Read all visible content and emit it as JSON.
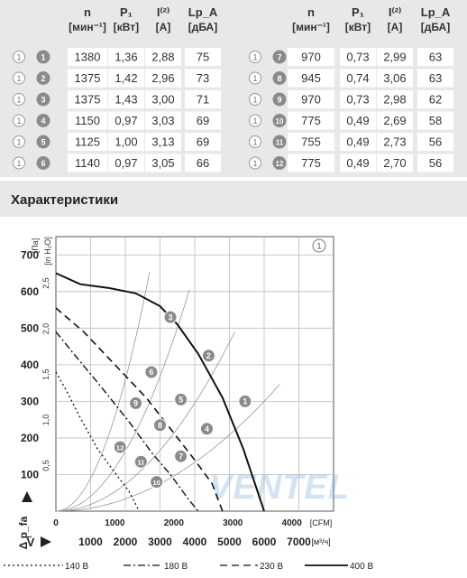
{
  "spec_table": {
    "headers": [
      {
        "sym": "n",
        "unit": "[мин⁻¹]"
      },
      {
        "sym": "P₁",
        "unit": "[кВт]"
      },
      {
        "sym": "I⁽²⁾",
        "unit": "[A]"
      },
      {
        "sym": "Lp_A",
        "unit": "[дБА]"
      }
    ],
    "left": [
      {
        "circle": "1",
        "badge": "1",
        "n": "1380",
        "p": "1,36",
        "i": "2,88",
        "lp": "75"
      },
      {
        "circle": "1",
        "badge": "2",
        "n": "1375",
        "p": "1,42",
        "i": "2,96",
        "lp": "73"
      },
      {
        "circle": "1",
        "badge": "3",
        "n": "1375",
        "p": "1,43",
        "i": "3,00",
        "lp": "71"
      },
      {
        "circle": "1",
        "badge": "4",
        "n": "1150",
        "p": "0,97",
        "i": "3,03",
        "lp": "69"
      },
      {
        "circle": "1",
        "badge": "5",
        "n": "1125",
        "p": "1,00",
        "i": "3,13",
        "lp": "69"
      },
      {
        "circle": "1",
        "badge": "6",
        "n": "1140",
        "p": "0,97",
        "i": "3,05",
        "lp": "66"
      }
    ],
    "right": [
      {
        "circle": "1",
        "badge": "7",
        "n": "970",
        "p": "0,73",
        "i": "2,99",
        "lp": "63"
      },
      {
        "circle": "1",
        "badge": "8",
        "n": "945",
        "p": "0,74",
        "i": "3,06",
        "lp": "63"
      },
      {
        "circle": "1",
        "badge": "9",
        "n": "970",
        "p": "0,73",
        "i": "2,98",
        "lp": "62"
      },
      {
        "circle": "1",
        "badge": "10",
        "n": "775",
        "p": "0,49",
        "i": "2,69",
        "lp": "58"
      },
      {
        "circle": "1",
        "badge": "11",
        "n": "755",
        "p": "0,49",
        "i": "2,73",
        "lp": "56"
      },
      {
        "circle": "1",
        "badge": "12",
        "n": "775",
        "p": "0,49",
        "i": "2,70",
        "lp": "56"
      }
    ]
  },
  "section_title": "Характеристики",
  "chart_data": {
    "type": "line",
    "curve_id": "1",
    "ylabel_pa": "[Па]",
    "ylabel_inh2o": "[in H₂O]",
    "ylabel_symbol": "Δ p_fa",
    "xlabel_cfm": "[CFM]",
    "xlabel_m3h": "[м³/ч]",
    "xlabel_symbol": "V̇",
    "yticks_pa": [
      100,
      200,
      300,
      400,
      500,
      600,
      700
    ],
    "yticks_inh2o": [
      "0,5",
      "1,0",
      "1,5",
      "2,0",
      "2,5"
    ],
    "xticks_cfm": [
      0,
      1000,
      2000,
      3000,
      4000
    ],
    "xticks_m3h": [
      1000,
      2000,
      3000,
      4000,
      5000,
      6000,
      7000
    ],
    "xlim_m3h": [
      0,
      8000
    ],
    "ylim_pa": [
      0,
      750
    ],
    "series": [
      {
        "name": "140 В",
        "style": "dotted",
        "x": [
          0,
          300,
          700,
          1200,
          1700,
          2100,
          2400
        ],
        "y": [
          380,
          330,
          255,
          170,
          105,
          55,
          0
        ]
      },
      {
        "name": "180 В",
        "style": "dash-dot",
        "x": [
          0,
          600,
          1300,
          2100,
          2800,
          3300,
          3800,
          4100
        ],
        "y": [
          490,
          420,
          340,
          245,
          155,
          100,
          35,
          0
        ]
      },
      {
        "name": "230 В",
        "style": "dashed",
        "x": [
          0,
          800,
          1700,
          2600,
          3300,
          4000,
          4500,
          4800
        ],
        "y": [
          555,
          490,
          400,
          310,
          225,
          140,
          75,
          0
        ]
      },
      {
        "name": "400 В",
        "style": "solid",
        "x": [
          0,
          700,
          1500,
          2300,
          3000,
          3500,
          4100,
          4800,
          5400,
          6000
        ],
        "y": [
          650,
          620,
          610,
          595,
          560,
          510,
          430,
          310,
          170,
          0
        ]
      }
    ],
    "operating_points": [
      {
        "id": "1",
        "x": 5450,
        "y": 300
      },
      {
        "id": "2",
        "x": 4400,
        "y": 425
      },
      {
        "id": "3",
        "x": 3300,
        "y": 530
      },
      {
        "id": "4",
        "x": 4350,
        "y": 225
      },
      {
        "id": "5",
        "x": 3600,
        "y": 305
      },
      {
        "id": "6",
        "x": 2750,
        "y": 380
      },
      {
        "id": "7",
        "x": 3600,
        "y": 150
      },
      {
        "id": "8",
        "x": 3000,
        "y": 235
      },
      {
        "id": "9",
        "x": 2300,
        "y": 295
      },
      {
        "id": "10",
        "x": 2900,
        "y": 80
      },
      {
        "id": "11",
        "x": 2450,
        "y": 135
      },
      {
        "id": "12",
        "x": 1850,
        "y": 175
      }
    ]
  },
  "watermark": "VENTEL",
  "badge_color": "#8a8a8a",
  "curve_color": "#111111",
  "band_color": "#e7e8ea"
}
